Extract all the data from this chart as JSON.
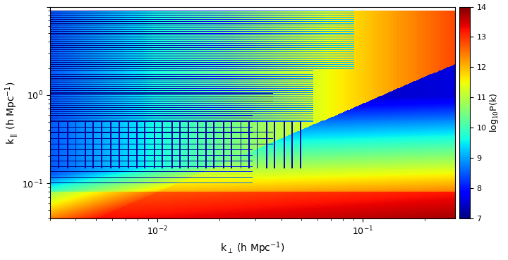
{
  "kperp_min": 0.003,
  "kperp_max": 0.28,
  "kpar_min": 0.04,
  "kpar_max": 9.0,
  "vmin": 7,
  "vmax": 14,
  "xlabel": "k$_{\\perp}$ (h Mpc$^{-1}$)",
  "ylabel": "k$_{\\parallel}$ (h Mpc$^{-1}$)",
  "colorbar_label": "log$_{10}$P(k)",
  "colorbar_ticks": [
    7,
    8,
    9,
    10,
    11,
    12,
    13,
    14
  ],
  "figsize": [
    7.2,
    3.69
  ],
  "dpi": 100,
  "background_color": "#ffffff",
  "cmap": "jet"
}
